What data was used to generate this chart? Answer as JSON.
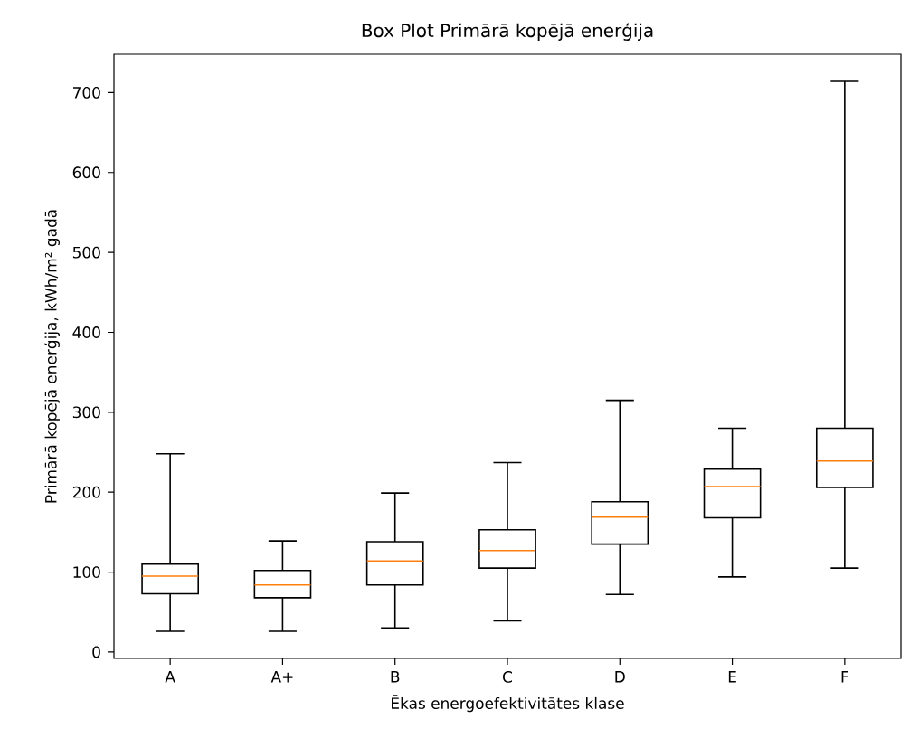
{
  "chart_data": {
    "type": "box",
    "title": "Box Plot Primārā kopējā enerģija",
    "xlabel": "Ēkas energoefektivitātes klase",
    "ylabel": "Primārā kopējā enerģija, kWh/m² gadā",
    "categories": [
      "A",
      "A+",
      "B",
      "C",
      "D",
      "E",
      "F"
    ],
    "color": "#000000",
    "boxes": [
      {
        "low": 26,
        "q1": 73,
        "median": 95,
        "q3": 110,
        "high": 248
      },
      {
        "low": 26,
        "q1": 68,
        "median": 84,
        "q3": 102,
        "high": 139
      },
      {
        "low": 30,
        "q1": 84,
        "median": 114,
        "q3": 138,
        "high": 199
      },
      {
        "low": 39,
        "q1": 105,
        "median": 127,
        "q3": 153,
        "high": 237
      },
      {
        "low": 72,
        "q1": 135,
        "median": 169,
        "q3": 188,
        "high": 315
      },
      {
        "low": 94,
        "q1": 168,
        "median": 207,
        "q3": 229,
        "high": 280
      },
      {
        "low": 105,
        "q1": 206,
        "median": 239,
        "q3": 280,
        "high": 714
      }
    ],
    "ylim": [
      -8,
      748
    ],
    "yticks": [
      0,
      100,
      200,
      300,
      400,
      500,
      600,
      700
    ]
  }
}
